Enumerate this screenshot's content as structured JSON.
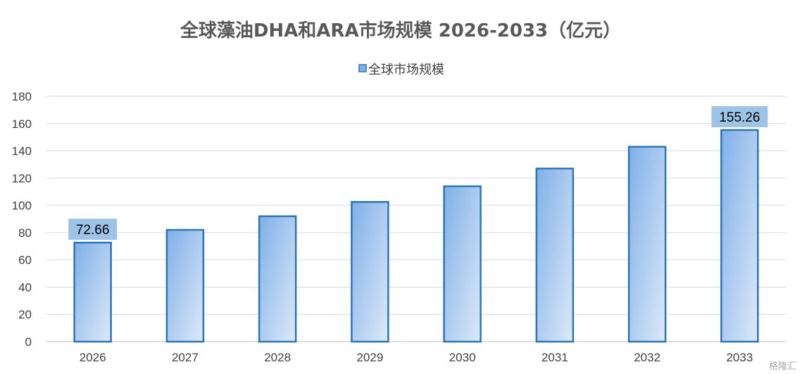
{
  "chart_data": {
    "type": "bar",
    "title": "全球藻油DHA和ARA市场规模 2026-2033（亿元）",
    "categories": [
      "2026",
      "2027",
      "2028",
      "2029",
      "2030",
      "2031",
      "2032",
      "2033"
    ],
    "series": [
      {
        "name": "全球市场规模",
        "values": [
          72.66,
          82,
          92,
          102.5,
          114,
          127,
          143,
          155.26
        ]
      }
    ],
    "data_labels": [
      {
        "category": "2026",
        "text": "72.66"
      },
      {
        "category": "2033",
        "text": "155.26"
      }
    ],
    "ylim": [
      0,
      180
    ],
    "yticks": [
      0,
      20,
      40,
      60,
      80,
      100,
      120,
      140,
      160,
      180
    ],
    "grid": true,
    "legend_position": "top",
    "colors": {
      "bar_top": "#7fb0e8",
      "bar_bottom": "#dde9f8",
      "bar_border": "#2e75b6",
      "label_bg": "#9dc3e6",
      "grid": "#d9d9d9",
      "axis": "#bfbfbf"
    }
  },
  "watermark": "格隆汇"
}
